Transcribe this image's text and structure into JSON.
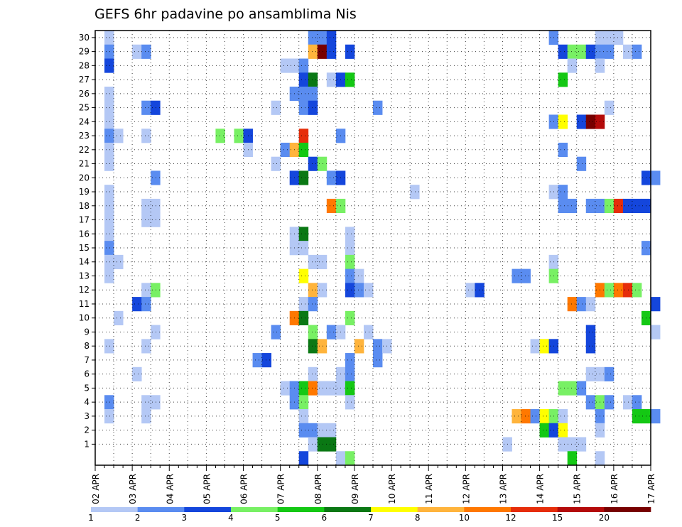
{
  "chart_data": {
    "type": "heatmap",
    "title": "GEFS 6hr padavine po ansamblima Nis",
    "xlabel": "",
    "ylabel": "",
    "x_tick_labels": [
      "02 APR",
      "03 APR",
      "04 APR",
      "05 APR",
      "06 APR",
      "07 APR",
      "08 APR",
      "09 APR",
      "10 APR",
      "11 APR",
      "12 APR",
      "13 APR",
      "14 APR",
      "15 APR",
      "16 APR",
      "17 APR"
    ],
    "y_members": [
      1,
      2,
      3,
      4,
      5,
      6,
      7,
      8,
      9,
      10,
      11,
      12,
      13,
      14,
      15,
      16,
      17,
      18,
      19,
      20,
      21,
      22,
      23,
      24,
      25,
      26,
      27,
      28,
      29,
      30
    ],
    "time_steps_6h": 60,
    "grid": true,
    "color_levels": [
      1,
      2,
      3,
      4,
      5,
      6,
      7,
      8,
      10,
      12,
      15,
      20
    ],
    "colors": [
      "#b4c8f5",
      "#5a8cf0",
      "#1446dc",
      "#78f064",
      "#14c814",
      "#0a7814",
      "#ffff00",
      "#ffb43c",
      "#ff7800",
      "#e62d0a",
      "#b40a0a",
      "#780000"
    ],
    "colorbar_labels": [
      "1",
      "2",
      "3",
      "4",
      "5",
      "6",
      "7",
      "8",
      "10",
      "12",
      "15",
      "20"
    ],
    "cells": [
      {
        "m": 30,
        "t": 1,
        "c": 0
      },
      {
        "m": 30,
        "t": 23,
        "c": 1
      },
      {
        "m": 30,
        "t": 24,
        "c": 1
      },
      {
        "m": 30,
        "t": 25,
        "c": 2
      },
      {
        "m": 30,
        "t": 49,
        "c": 1
      },
      {
        "m": 30,
        "t": 54,
        "c": 0
      },
      {
        "m": 30,
        "t": 55,
        "c": 0
      },
      {
        "m": 30,
        "t": 56,
        "c": 0
      },
      {
        "m": 29,
        "t": 1,
        "c": 1
      },
      {
        "m": 29,
        "t": 4,
        "c": 0
      },
      {
        "m": 29,
        "t": 5,
        "c": 1
      },
      {
        "m": 29,
        "t": 23,
        "c": 7
      },
      {
        "m": 29,
        "t": 24,
        "c": 11
      },
      {
        "m": 29,
        "t": 25,
        "c": 2
      },
      {
        "m": 29,
        "t": 27,
        "c": 2
      },
      {
        "m": 29,
        "t": 50,
        "c": 2
      },
      {
        "m": 29,
        "t": 51,
        "c": 3
      },
      {
        "m": 29,
        "t": 52,
        "c": 3
      },
      {
        "m": 29,
        "t": 53,
        "c": 2
      },
      {
        "m": 29,
        "t": 54,
        "c": 1
      },
      {
        "m": 29,
        "t": 55,
        "c": 1
      },
      {
        "m": 29,
        "t": 57,
        "c": 0
      },
      {
        "m": 29,
        "t": 58,
        "c": 1
      },
      {
        "m": 28,
        "t": 1,
        "c": 2
      },
      {
        "m": 28,
        "t": 20,
        "c": 0
      },
      {
        "m": 28,
        "t": 21,
        "c": 0
      },
      {
        "m": 28,
        "t": 22,
        "c": 1
      },
      {
        "m": 28,
        "t": 51,
        "c": 0
      },
      {
        "m": 28,
        "t": 54,
        "c": 0
      },
      {
        "m": 27,
        "t": 22,
        "c": 2
      },
      {
        "m": 27,
        "t": 23,
        "c": 5
      },
      {
        "m": 27,
        "t": 25,
        "c": 0
      },
      {
        "m": 27,
        "t": 26,
        "c": 2
      },
      {
        "m": 27,
        "t": 27,
        "c": 4
      },
      {
        "m": 27,
        "t": 50,
        "c": 4
      },
      {
        "m": 26,
        "t": 1,
        "c": 0
      },
      {
        "m": 26,
        "t": 21,
        "c": 1
      },
      {
        "m": 26,
        "t": 22,
        "c": 1
      },
      {
        "m": 26,
        "t": 23,
        "c": 1
      },
      {
        "m": 25,
        "t": 1,
        "c": 0
      },
      {
        "m": 25,
        "t": 5,
        "c": 1
      },
      {
        "m": 25,
        "t": 6,
        "c": 2
      },
      {
        "m": 25,
        "t": 19,
        "c": 0
      },
      {
        "m": 25,
        "t": 22,
        "c": 1
      },
      {
        "m": 25,
        "t": 23,
        "c": 2
      },
      {
        "m": 25,
        "t": 30,
        "c": 1
      },
      {
        "m": 25,
        "t": 55,
        "c": 0
      },
      {
        "m": 24,
        "t": 1,
        "c": 0
      },
      {
        "m": 24,
        "t": 49,
        "c": 1
      },
      {
        "m": 24,
        "t": 50,
        "c": 6
      },
      {
        "m": 24,
        "t": 52,
        "c": 2
      },
      {
        "m": 24,
        "t": 53,
        "c": 11
      },
      {
        "m": 24,
        "t": 54,
        "c": 10
      },
      {
        "m": 23,
        "t": 1,
        "c": 1
      },
      {
        "m": 23,
        "t": 2,
        "c": 0
      },
      {
        "m": 23,
        "t": 5,
        "c": 0
      },
      {
        "m": 23,
        "t": 13,
        "c": 3
      },
      {
        "m": 23,
        "t": 15,
        "c": 3
      },
      {
        "m": 23,
        "t": 16,
        "c": 2
      },
      {
        "m": 23,
        "t": 22,
        "c": 9
      },
      {
        "m": 23,
        "t": 26,
        "c": 1
      },
      {
        "m": 22,
        "t": 1,
        "c": 0
      },
      {
        "m": 22,
        "t": 16,
        "c": 0
      },
      {
        "m": 22,
        "t": 20,
        "c": 1
      },
      {
        "m": 22,
        "t": 21,
        "c": 7
      },
      {
        "m": 22,
        "t": 22,
        "c": 4
      },
      {
        "m": 22,
        "t": 50,
        "c": 1
      },
      {
        "m": 21,
        "t": 1,
        "c": 0
      },
      {
        "m": 21,
        "t": 19,
        "c": 0
      },
      {
        "m": 21,
        "t": 23,
        "c": 2
      },
      {
        "m": 21,
        "t": 24,
        "c": 3
      },
      {
        "m": 21,
        "t": 52,
        "c": 1
      },
      {
        "m": 20,
        "t": 6,
        "c": 1
      },
      {
        "m": 20,
        "t": 21,
        "c": 2
      },
      {
        "m": 20,
        "t": 22,
        "c": 5
      },
      {
        "m": 20,
        "t": 25,
        "c": 1
      },
      {
        "m": 20,
        "t": 26,
        "c": 2
      },
      {
        "m": 20,
        "t": 59,
        "c": 2
      },
      {
        "m": 20,
        "t": 60,
        "c": 1
      },
      {
        "m": 19,
        "t": 1,
        "c": 0
      },
      {
        "m": 19,
        "t": 34,
        "c": 0
      },
      {
        "m": 19,
        "t": 49,
        "c": 0
      },
      {
        "m": 19,
        "t": 50,
        "c": 1
      },
      {
        "m": 18,
        "t": 1,
        "c": 0
      },
      {
        "m": 18,
        "t": 5,
        "c": 0
      },
      {
        "m": 18,
        "t": 6,
        "c": 0
      },
      {
        "m": 18,
        "t": 25,
        "c": 8
      },
      {
        "m": 18,
        "t": 26,
        "c": 3
      },
      {
        "m": 18,
        "t": 50,
        "c": 1
      },
      {
        "m": 18,
        "t": 51,
        "c": 1
      },
      {
        "m": 18,
        "t": 53,
        "c": 1
      },
      {
        "m": 18,
        "t": 54,
        "c": 1
      },
      {
        "m": 18,
        "t": 55,
        "c": 3
      },
      {
        "m": 18,
        "t": 56,
        "c": 9
      },
      {
        "m": 18,
        "t": 57,
        "c": 2
      },
      {
        "m": 18,
        "t": 58,
        "c": 2
      },
      {
        "m": 18,
        "t": 59,
        "c": 2
      },
      {
        "m": 17,
        "t": 1,
        "c": 0
      },
      {
        "m": 17,
        "t": 5,
        "c": 0
      },
      {
        "m": 17,
        "t": 6,
        "c": 0
      },
      {
        "m": 16,
        "t": 1,
        "c": 0
      },
      {
        "m": 16,
        "t": 21,
        "c": 0
      },
      {
        "m": 16,
        "t": 22,
        "c": 5
      },
      {
        "m": 16,
        "t": 27,
        "c": 0
      },
      {
        "m": 15,
        "t": 1,
        "c": 1
      },
      {
        "m": 15,
        "t": 21,
        "c": 0
      },
      {
        "m": 15,
        "t": 22,
        "c": 0
      },
      {
        "m": 15,
        "t": 27,
        "c": 0
      },
      {
        "m": 15,
        "t": 59,
        "c": 1
      },
      {
        "m": 14,
        "t": 1,
        "c": 0
      },
      {
        "m": 14,
        "t": 2,
        "c": 0
      },
      {
        "m": 14,
        "t": 23,
        "c": 0
      },
      {
        "m": 14,
        "t": 24,
        "c": 0
      },
      {
        "m": 14,
        "t": 27,
        "c": 3
      },
      {
        "m": 14,
        "t": 49,
        "c": 0
      },
      {
        "m": 13,
        "t": 1,
        "c": 0
      },
      {
        "m": 13,
        "t": 22,
        "c": 6
      },
      {
        "m": 13,
        "t": 27,
        "c": 1
      },
      {
        "m": 13,
        "t": 28,
        "c": 0
      },
      {
        "m": 13,
        "t": 45,
        "c": 1
      },
      {
        "m": 13,
        "t": 46,
        "c": 1
      },
      {
        "m": 13,
        "t": 49,
        "c": 3
      },
      {
        "m": 12,
        "t": 5,
        "c": 0
      },
      {
        "m": 12,
        "t": 6,
        "c": 3
      },
      {
        "m": 12,
        "t": 23,
        "c": 7
      },
      {
        "m": 12,
        "t": 24,
        "c": 0
      },
      {
        "m": 12,
        "t": 27,
        "c": 2
      },
      {
        "m": 12,
        "t": 28,
        "c": 1
      },
      {
        "m": 12,
        "t": 29,
        "c": 0
      },
      {
        "m": 12,
        "t": 40,
        "c": 0
      },
      {
        "m": 12,
        "t": 41,
        "c": 2
      },
      {
        "m": 12,
        "t": 54,
        "c": 8
      },
      {
        "m": 12,
        "t": 55,
        "c": 3
      },
      {
        "m": 12,
        "t": 56,
        "c": 8
      },
      {
        "m": 12,
        "t": 57,
        "c": 9
      },
      {
        "m": 12,
        "t": 58,
        "c": 3
      },
      {
        "m": 11,
        "t": 4,
        "c": 2
      },
      {
        "m": 11,
        "t": 5,
        "c": 1
      },
      {
        "m": 11,
        "t": 22,
        "c": 0
      },
      {
        "m": 11,
        "t": 23,
        "c": 1
      },
      {
        "m": 11,
        "t": 51,
        "c": 8
      },
      {
        "m": 11,
        "t": 52,
        "c": 1
      },
      {
        "m": 11,
        "t": 53,
        "c": 0
      },
      {
        "m": 11,
        "t": 60,
        "c": 2
      },
      {
        "m": 10,
        "t": 2,
        "c": 0
      },
      {
        "m": 10,
        "t": 21,
        "c": 8
      },
      {
        "m": 10,
        "t": 22,
        "c": 5
      },
      {
        "m": 10,
        "t": 27,
        "c": 3
      },
      {
        "m": 10,
        "t": 59,
        "c": 4
      },
      {
        "m": 9,
        "t": 6,
        "c": 0
      },
      {
        "m": 9,
        "t": 19,
        "c": 1
      },
      {
        "m": 9,
        "t": 23,
        "c": 3
      },
      {
        "m": 9,
        "t": 25,
        "c": 1
      },
      {
        "m": 9,
        "t": 26,
        "c": 0
      },
      {
        "m": 9,
        "t": 29,
        "c": 0
      },
      {
        "m": 9,
        "t": 53,
        "c": 2
      },
      {
        "m": 9,
        "t": 60,
        "c": 0
      },
      {
        "m": 8,
        "t": 1,
        "c": 0
      },
      {
        "m": 8,
        "t": 5,
        "c": 0
      },
      {
        "m": 8,
        "t": 23,
        "c": 5
      },
      {
        "m": 8,
        "t": 24,
        "c": 7
      },
      {
        "m": 8,
        "t": 28,
        "c": 7
      },
      {
        "m": 8,
        "t": 30,
        "c": 1
      },
      {
        "m": 8,
        "t": 31,
        "c": 0
      },
      {
        "m": 8,
        "t": 47,
        "c": 0
      },
      {
        "m": 8,
        "t": 48,
        "c": 6
      },
      {
        "m": 8,
        "t": 49,
        "c": 2
      },
      {
        "m": 8,
        "t": 53,
        "c": 2
      },
      {
        "m": 7,
        "t": 17,
        "c": 1
      },
      {
        "m": 7,
        "t": 18,
        "c": 2
      },
      {
        "m": 7,
        "t": 27,
        "c": 1
      },
      {
        "m": 7,
        "t": 30,
        "c": 1
      },
      {
        "m": 6,
        "t": 4,
        "c": 0
      },
      {
        "m": 6,
        "t": 23,
        "c": 0
      },
      {
        "m": 6,
        "t": 26,
        "c": 0
      },
      {
        "m": 6,
        "t": 27,
        "c": 1
      },
      {
        "m": 6,
        "t": 53,
        "c": 0
      },
      {
        "m": 6,
        "t": 54,
        "c": 0
      },
      {
        "m": 6,
        "t": 55,
        "c": 1
      },
      {
        "m": 5,
        "t": 20,
        "c": 0
      },
      {
        "m": 5,
        "t": 21,
        "c": 1
      },
      {
        "m": 5,
        "t": 22,
        "c": 4
      },
      {
        "m": 5,
        "t": 23,
        "c": 8
      },
      {
        "m": 5,
        "t": 24,
        "c": 0
      },
      {
        "m": 5,
        "t": 25,
        "c": 0
      },
      {
        "m": 5,
        "t": 26,
        "c": 0
      },
      {
        "m": 5,
        "t": 27,
        "c": 4
      },
      {
        "m": 5,
        "t": 50,
        "c": 3
      },
      {
        "m": 5,
        "t": 51,
        "c": 3
      },
      {
        "m": 5,
        "t": 52,
        "c": 1
      },
      {
        "m": 4,
        "t": 1,
        "c": 1
      },
      {
        "m": 4,
        "t": 5,
        "c": 0
      },
      {
        "m": 4,
        "t": 6,
        "c": 0
      },
      {
        "m": 4,
        "t": 21,
        "c": 1
      },
      {
        "m": 4,
        "t": 22,
        "c": 3
      },
      {
        "m": 4,
        "t": 27,
        "c": 0
      },
      {
        "m": 4,
        "t": 53,
        "c": 1
      },
      {
        "m": 4,
        "t": 54,
        "c": 3
      },
      {
        "m": 4,
        "t": 55,
        "c": 1
      },
      {
        "m": 4,
        "t": 57,
        "c": 0
      },
      {
        "m": 4,
        "t": 58,
        "c": 1
      },
      {
        "m": 3,
        "t": 1,
        "c": 0
      },
      {
        "m": 3,
        "t": 5,
        "c": 0
      },
      {
        "m": 3,
        "t": 22,
        "c": 0
      },
      {
        "m": 3,
        "t": 45,
        "c": 7
      },
      {
        "m": 3,
        "t": 46,
        "c": 8
      },
      {
        "m": 3,
        "t": 47,
        "c": 1
      },
      {
        "m": 3,
        "t": 48,
        "c": 6
      },
      {
        "m": 3,
        "t": 49,
        "c": 3
      },
      {
        "m": 3,
        "t": 50,
        "c": 0
      },
      {
        "m": 3,
        "t": 54,
        "c": 1
      },
      {
        "m": 3,
        "t": 58,
        "c": 4
      },
      {
        "m": 3,
        "t": 59,
        "c": 4
      },
      {
        "m": 3,
        "t": 60,
        "c": 1
      },
      {
        "m": 2,
        "t": 22,
        "c": 1
      },
      {
        "m": 2,
        "t": 23,
        "c": 1
      },
      {
        "m": 2,
        "t": 24,
        "c": 0
      },
      {
        "m": 2,
        "t": 25,
        "c": 0
      },
      {
        "m": 2,
        "t": 48,
        "c": 4
      },
      {
        "m": 2,
        "t": 49,
        "c": 2
      },
      {
        "m": 2,
        "t": 50,
        "c": 6
      },
      {
        "m": 2,
        "t": 54,
        "c": 0
      },
      {
        "m": 1,
        "t": 23,
        "c": 0
      },
      {
        "m": 1,
        "t": 24,
        "c": 5
      },
      {
        "m": 1,
        "t": 25,
        "c": 5
      },
      {
        "m": 1,
        "t": 44,
        "c": 0
      },
      {
        "m": 1,
        "t": 50,
        "c": 0
      },
      {
        "m": 1,
        "t": 51,
        "c": 0
      },
      {
        "m": 1,
        "t": 52,
        "c": 0
      },
      {
        "m": 0,
        "t": 22,
        "c": 2
      },
      {
        "m": 0,
        "t": 26,
        "c": 0
      },
      {
        "m": 0,
        "t": 27,
        "c": 3
      },
      {
        "m": 0,
        "t": 51,
        "c": 4
      },
      {
        "m": 0,
        "t": 54,
        "c": 0
      }
    ]
  }
}
